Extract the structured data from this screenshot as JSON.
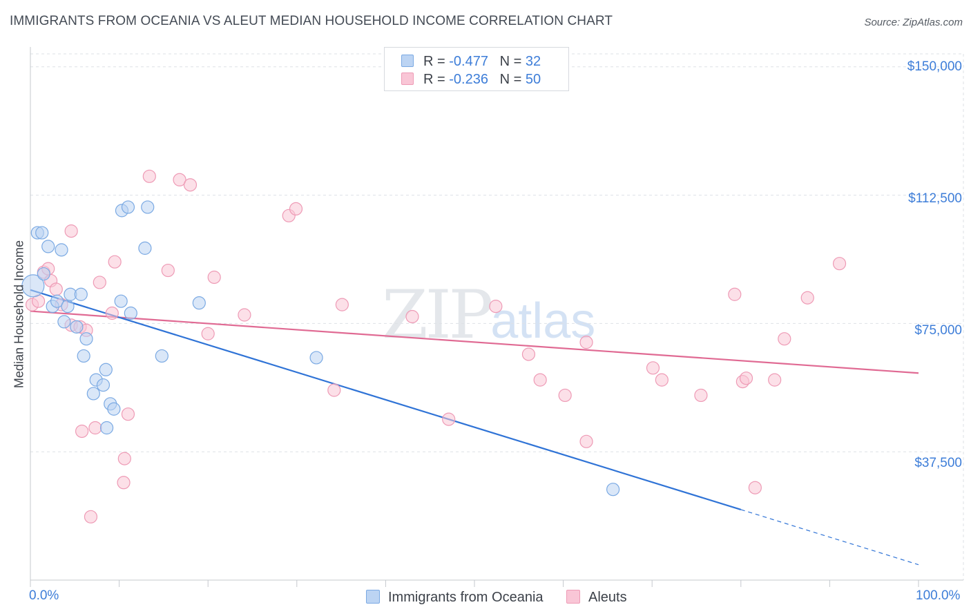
{
  "title": "IMMIGRANTS FROM OCEANIA VS ALEUT MEDIAN HOUSEHOLD INCOME CORRELATION CHART",
  "source": "Source: ZipAtlas.com",
  "watermark": {
    "zip": "ZIP",
    "atlas": "atlas"
  },
  "colors": {
    "blue_fill": "#bcd4f3",
    "blue_stroke": "#7aa9e3",
    "blue_line": "#2f73d6",
    "pink_fill": "#f9c6d6",
    "pink_stroke": "#ee9ab5",
    "pink_line": "#e06a93",
    "axis_text": "#3d7dd8",
    "grid": "#dde1e6"
  },
  "legend": {
    "rows": [
      {
        "r_label": "R = ",
        "r_value": "-0.477",
        "n_label": "N = ",
        "n_value": "32"
      },
      {
        "r_label": "R = ",
        "r_value": "-0.236",
        "n_label": "N = ",
        "n_value": "50"
      }
    ]
  },
  "chart_data": {
    "type": "scatter",
    "title": "IMMIGRANTS FROM OCEANIA VS ALEUT MEDIAN HOUSEHOLD INCOME CORRELATION CHART",
    "xlabel": "",
    "ylabel": "Median Household Income",
    "xlim": [
      0,
      100
    ],
    "ylim": [
      0,
      155000
    ],
    "x_tick_labels": [
      "0.0%",
      "100.0%"
    ],
    "y_ticks": [
      37500,
      75000,
      112500,
      150000
    ],
    "y_tick_labels": [
      "$37,500",
      "$75,000",
      "$112,500",
      "$150,000"
    ],
    "legend_position": "top-center",
    "series": [
      {
        "name": "Immigrants from Oceania",
        "R": -0.477,
        "N": 32,
        "points": [
          [
            0.3,
            86000
          ],
          [
            0.8,
            101500
          ],
          [
            1.3,
            101500
          ],
          [
            2.0,
            97500
          ],
          [
            3.5,
            96500
          ],
          [
            1.5,
            89500
          ],
          [
            2.5,
            80000
          ],
          [
            3.0,
            81500
          ],
          [
            4.5,
            83500
          ],
          [
            5.7,
            83500
          ],
          [
            3.8,
            75500
          ],
          [
            5.2,
            74000
          ],
          [
            6.3,
            70500
          ],
          [
            6.0,
            65500
          ],
          [
            7.4,
            58500
          ],
          [
            8.2,
            57000
          ],
          [
            8.5,
            61500
          ],
          [
            7.1,
            54500
          ],
          [
            9.0,
            51500
          ],
          [
            9.4,
            50000
          ],
          [
            8.6,
            44500
          ],
          [
            10.3,
            108000
          ],
          [
            11.0,
            109000
          ],
          [
            13.2,
            109000
          ],
          [
            12.9,
            97000
          ],
          [
            10.2,
            81500
          ],
          [
            11.3,
            78000
          ],
          [
            14.8,
            65500
          ],
          [
            19.0,
            81000
          ],
          [
            32.2,
            65000
          ],
          [
            65.6,
            26500
          ],
          [
            4.2,
            80000
          ]
        ],
        "trend": {
          "x0": 0,
          "y0": 84800,
          "x1": 80,
          "y1": 20600,
          "dash_x1": 100,
          "dash_y1": 4500
        }
      },
      {
        "name": "Aleuts",
        "R": -0.236,
        "N": 50,
        "points": [
          [
            0.2,
            80500
          ],
          [
            0.9,
            81500
          ],
          [
            1.5,
            90000
          ],
          [
            2.0,
            91000
          ],
          [
            2.3,
            87500
          ],
          [
            2.9,
            85000
          ],
          [
            3.5,
            80500
          ],
          [
            4.6,
            74500
          ],
          [
            5.6,
            74000
          ],
          [
            6.3,
            73000
          ],
          [
            4.6,
            102000
          ],
          [
            7.8,
            87000
          ],
          [
            9.5,
            93000
          ],
          [
            9.2,
            78000
          ],
          [
            5.8,
            43500
          ],
          [
            7.3,
            44500
          ],
          [
            11.0,
            48500
          ],
          [
            10.6,
            35500
          ],
          [
            10.5,
            28500
          ],
          [
            6.8,
            18500
          ],
          [
            13.4,
            118000
          ],
          [
            16.8,
            117000
          ],
          [
            15.5,
            90500
          ],
          [
            18.0,
            115500
          ],
          [
            20.7,
            88500
          ],
          [
            20.0,
            72000
          ],
          [
            24.1,
            77500
          ],
          [
            29.1,
            106500
          ],
          [
            29.9,
            108500
          ],
          [
            35.1,
            80500
          ],
          [
            34.2,
            55500
          ],
          [
            43.0,
            77000
          ],
          [
            47.1,
            47000
          ],
          [
            52.4,
            80000
          ],
          [
            56.1,
            66000
          ],
          [
            57.4,
            58500
          ],
          [
            60.2,
            54000
          ],
          [
            62.6,
            69500
          ],
          [
            62.6,
            40500
          ],
          [
            70.1,
            62000
          ],
          [
            71.1,
            58500
          ],
          [
            75.5,
            54000
          ],
          [
            79.3,
            83500
          ],
          [
            80.2,
            58000
          ],
          [
            80.6,
            59000
          ],
          [
            81.6,
            27000
          ],
          [
            83.8,
            58500
          ],
          [
            84.9,
            70500
          ],
          [
            87.5,
            82500
          ],
          [
            91.1,
            92500
          ]
        ],
        "trend": {
          "x0": 0,
          "y0": 78600,
          "x1": 100,
          "y1": 60500
        }
      }
    ]
  },
  "bottom_legend": [
    {
      "label": "Immigrants from Oceania"
    },
    {
      "label": "Aleuts"
    }
  ]
}
